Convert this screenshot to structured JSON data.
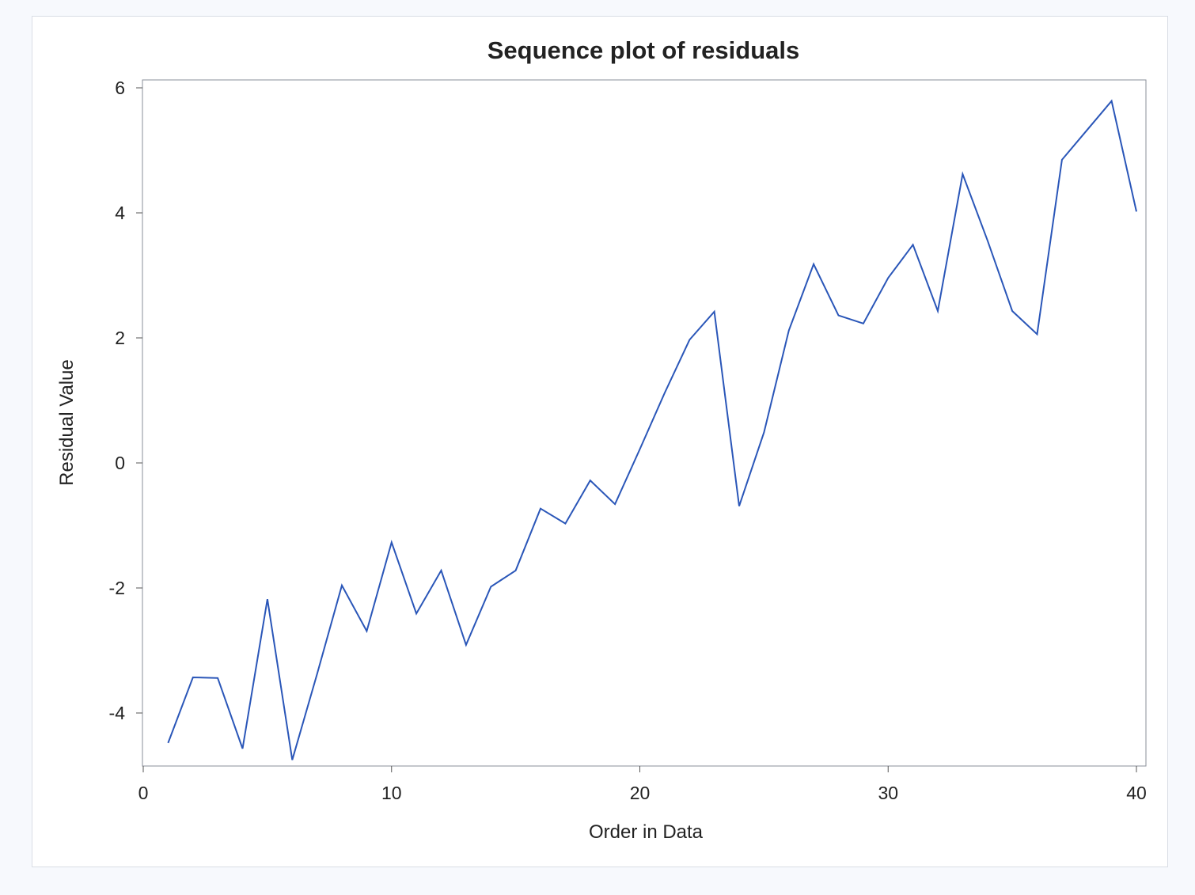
{
  "chart_data": {
    "type": "line",
    "title": "Sequence plot of residuals",
    "xlabel": "Order in Data",
    "ylabel": "Residual Value",
    "xlim": [
      0,
      40
    ],
    "ylim": [
      -4.8,
      6.1
    ],
    "x_ticks": [
      0,
      10,
      20,
      30,
      40
    ],
    "y_ticks": [
      -4,
      -2,
      0,
      2,
      4,
      6
    ],
    "grid": false,
    "legend": "none",
    "line_color": "#2a56b8",
    "series": [
      {
        "x": [
          1,
          2,
          3,
          4,
          5,
          6,
          7,
          8,
          9,
          10,
          11,
          12,
          13,
          14,
          15,
          16,
          17,
          18,
          19,
          20,
          21,
          22,
          23,
          24,
          25,
          26,
          27,
          28,
          29,
          30,
          31,
          32,
          33,
          34,
          35,
          36,
          37,
          38,
          39,
          40
        ],
        "values": [
          -4.48,
          -3.43,
          -3.44,
          -4.57,
          -2.18,
          -4.75,
          -3.38,
          -1.96,
          -2.69,
          -1.27,
          -2.41,
          -1.72,
          -2.91,
          -1.98,
          -1.72,
          -0.73,
          -0.97,
          -0.28,
          -0.66,
          0.22,
          1.12,
          1.97,
          2.42,
          -0.69,
          0.49,
          2.12,
          3.18,
          2.36,
          2.23,
          2.96,
          3.49,
          2.43,
          4.62,
          3.56,
          2.43,
          2.06,
          4.85,
          5.32,
          5.79,
          4.02
        ]
      }
    ]
  }
}
